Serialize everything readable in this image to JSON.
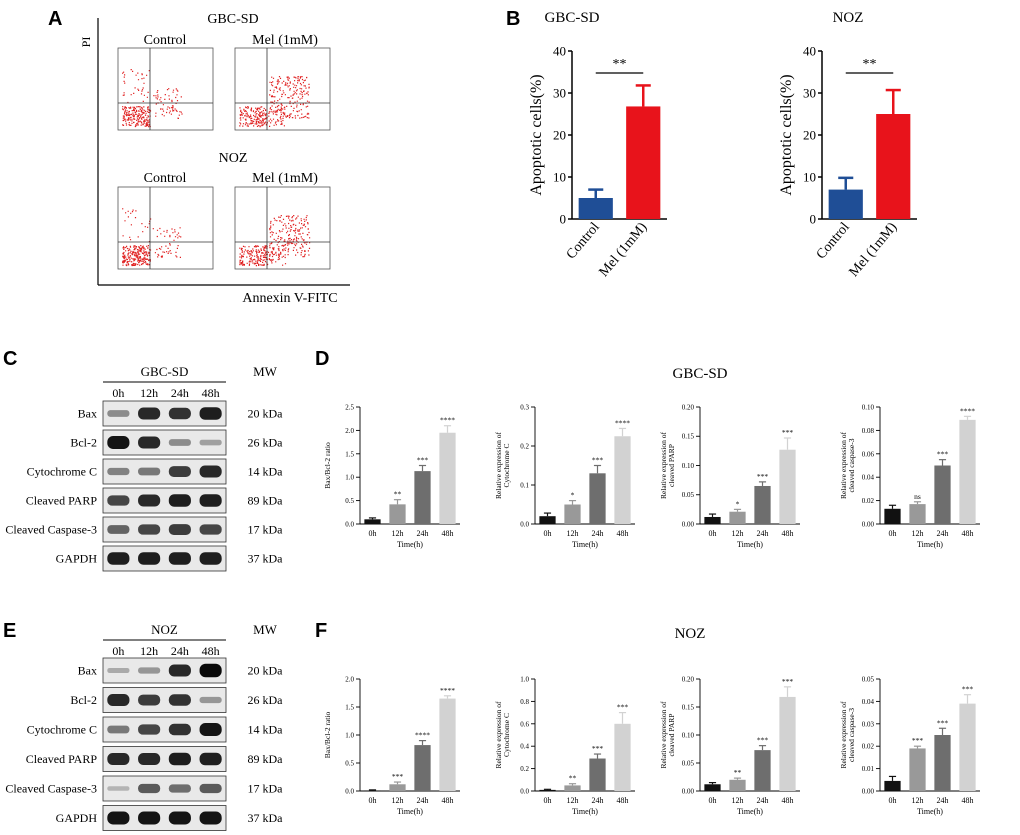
{
  "panel_labels": {
    "A": "A",
    "B": "B",
    "C": "C",
    "D": "D",
    "E": "E",
    "F": "F"
  },
  "panel_a": {
    "y_axis": "PI",
    "x_axis": "Annexin V-FITC",
    "group1": "GBC-SD",
    "group2": "NOZ",
    "cond_control": "Control",
    "cond_mel": "Mel (1mM)"
  },
  "colors": {
    "control_bar": "#1f4e96",
    "mel_bar": "#e8131b",
    "dot": "#e02020",
    "t0": "#111111",
    "t12": "#999999",
    "t24": "#6e6e6e",
    "t48": "#d2d2d2"
  },
  "western_c": {
    "cell": "GBC-SD",
    "mw_header": "MW",
    "times": [
      "0h",
      "12h",
      "24h",
      "48h"
    ],
    "rows": [
      {
        "name": "Bax",
        "mw": "20 kDa",
        "intensity": [
          0.35,
          0.85,
          0.8,
          0.9
        ]
      },
      {
        "name": "Bcl-2",
        "mw": "26 kDa",
        "intensity": [
          0.95,
          0.85,
          0.35,
          0.25
        ]
      },
      {
        "name": "Cytochrome C",
        "mw": "14 kDa",
        "intensity": [
          0.4,
          0.45,
          0.75,
          0.85
        ]
      },
      {
        "name": "Cleaved PARP",
        "mw": "89 kDa",
        "intensity": [
          0.7,
          0.85,
          0.9,
          0.9
        ]
      },
      {
        "name": "Cleaved Caspase-3",
        "mw": "17 kDa",
        "intensity": [
          0.55,
          0.7,
          0.75,
          0.7
        ]
      },
      {
        "name": "GAPDH",
        "mw": "37 kDa",
        "intensity": [
          0.9,
          0.9,
          0.9,
          0.9
        ]
      }
    ]
  },
  "western_e": {
    "cell": "NOZ",
    "mw_header": "MW",
    "times": [
      "0h",
      "12h",
      "24h",
      "48h"
    ],
    "rows": [
      {
        "name": "Bax",
        "mw": "20 kDa",
        "intensity": [
          0.2,
          0.3,
          0.85,
          1.0
        ]
      },
      {
        "name": "Bcl-2",
        "mw": "26 kDa",
        "intensity": [
          0.85,
          0.75,
          0.8,
          0.3
        ]
      },
      {
        "name": "Cytochrome C",
        "mw": "14 kDa",
        "intensity": [
          0.45,
          0.7,
          0.8,
          0.95
        ]
      },
      {
        "name": "Cleaved PARP",
        "mw": "89 kDa",
        "intensity": [
          0.85,
          0.85,
          0.9,
          0.9
        ]
      },
      {
        "name": "Cleaved Caspase-3",
        "mw": "17 kDa",
        "intensity": [
          0.15,
          0.6,
          0.5,
          0.6
        ]
      },
      {
        "name": "GAPDH",
        "mw": "37 kDa",
        "intensity": [
          0.95,
          0.95,
          0.95,
          0.95
        ]
      }
    ]
  },
  "titles": {
    "d": "GBC-SD",
    "f": "NOZ"
  },
  "chart_data": [
    {
      "id": "B-GBC-SD",
      "type": "bar",
      "title": "GBC-SD",
      "ylabel": "Apoptotic cells(%)",
      "xlabel": "",
      "categories": [
        "Control",
        "Mel (1mM)"
      ],
      "values": [
        5,
        26.8
      ],
      "errors": [
        2,
        5
      ],
      "ylim": [
        0,
        40
      ],
      "yticks": [
        0,
        10,
        20,
        30,
        40
      ],
      "sig": "**"
    },
    {
      "id": "B-NOZ",
      "type": "bar",
      "title": "NOZ",
      "ylabel": "Apoptotic cells(%)",
      "xlabel": "",
      "categories": [
        "Control",
        "Mel (1mM)"
      ],
      "values": [
        7,
        25
      ],
      "errors": [
        2.8,
        5.7
      ],
      "ylim": [
        0,
        40
      ],
      "yticks": [
        0,
        10,
        20,
        30,
        40
      ],
      "sig": "**"
    },
    {
      "id": "D1",
      "type": "bar",
      "title": "",
      "ylabel": "Bax/Bcl-2 ratio",
      "xlabel": "Time(h)",
      "categories": [
        "0h",
        "12h",
        "24h",
        "48h"
      ],
      "values": [
        0.1,
        0.42,
        1.13,
        1.95
      ],
      "errors": [
        0.03,
        0.1,
        0.12,
        0.15
      ],
      "ylim": [
        0,
        2.5
      ],
      "yticks": [
        "0.0",
        "0.5",
        "1.0",
        "1.5",
        "2.0",
        "2.5"
      ],
      "sig": [
        "",
        "**",
        "***",
        "****"
      ]
    },
    {
      "id": "D2",
      "type": "bar",
      "title": "",
      "ylabel": "Relative expression of\nCytochrome C",
      "xlabel": "Time(h)",
      "categories": [
        "0h",
        "12h",
        "24h",
        "48h"
      ],
      "values": [
        0.02,
        0.05,
        0.13,
        0.225
      ],
      "errors": [
        0.008,
        0.01,
        0.02,
        0.02
      ],
      "ylim": [
        0,
        0.3
      ],
      "yticks": [
        "0.0",
        "0.1",
        "0.2",
        "0.3"
      ],
      "sig": [
        "",
        "*",
        "***",
        "****"
      ]
    },
    {
      "id": "D3",
      "type": "bar",
      "title": "",
      "ylabel": "Relative expression of\ncleaved PARP",
      "xlabel": "Time(h)",
      "categories": [
        "0h",
        "12h",
        "24h",
        "48h"
      ],
      "values": [
        0.012,
        0.021,
        0.065,
        0.127
      ],
      "errors": [
        0.005,
        0.004,
        0.007,
        0.02
      ],
      "ylim": [
        0,
        0.2
      ],
      "yticks": [
        "0.00",
        "0.05",
        "0.10",
        "0.15",
        "0.20"
      ],
      "sig": [
        "",
        "*",
        "***",
        "***"
      ]
    },
    {
      "id": "D4",
      "type": "bar",
      "title": "",
      "ylabel": "Relative expression of\ncleaved caspase-3",
      "xlabel": "Time(h)",
      "categories": [
        "0h",
        "12h",
        "24h",
        "48h"
      ],
      "values": [
        0.013,
        0.017,
        0.05,
        0.089
      ],
      "errors": [
        0.003,
        0.002,
        0.005,
        0.003
      ],
      "ylim": [
        0,
        0.1
      ],
      "yticks": [
        "0.00",
        "0.02",
        "0.04",
        "0.06",
        "0.08",
        "0.10"
      ],
      "sig": [
        "",
        "ns",
        "***",
        "****"
      ]
    },
    {
      "id": "F1",
      "type": "bar",
      "title": "",
      "ylabel": "Bax/Bcl-2 ratio",
      "xlabel": "Time(h)",
      "categories": [
        "0h",
        "12h",
        "24h",
        "48h"
      ],
      "values": [
        0.01,
        0.12,
        0.82,
        1.65
      ],
      "errors": [
        0.01,
        0.04,
        0.08,
        0.05
      ],
      "ylim": [
        0,
        2.0
      ],
      "yticks": [
        "0.0",
        "0.5",
        "1.0",
        "1.5",
        "2.0"
      ],
      "sig": [
        "",
        "***",
        "****",
        "****"
      ]
    },
    {
      "id": "F2",
      "type": "bar",
      "title": "",
      "ylabel": "Relative expression of\nCytochrome C",
      "xlabel": "Time(h)",
      "categories": [
        "0h",
        "12h",
        "24h",
        "48h"
      ],
      "values": [
        0.01,
        0.05,
        0.29,
        0.6
      ],
      "errors": [
        0.005,
        0.015,
        0.04,
        0.1
      ],
      "ylim": [
        0,
        1.0
      ],
      "yticks": [
        "0.0",
        "0.2",
        "0.4",
        "0.6",
        "0.8",
        "1.0"
      ],
      "sig": [
        "",
        "**",
        "***",
        "***"
      ]
    },
    {
      "id": "F3",
      "type": "bar",
      "title": "",
      "ylabel": "Relative expression of\ncleaved PARP",
      "xlabel": "Time(h)",
      "categories": [
        "0h",
        "12h",
        "24h",
        "48h"
      ],
      "values": [
        0.012,
        0.02,
        0.073,
        0.168
      ],
      "errors": [
        0.003,
        0.003,
        0.008,
        0.018
      ],
      "ylim": [
        0,
        0.2
      ],
      "yticks": [
        "0.00",
        "0.05",
        "0.10",
        "0.15",
        "0.20"
      ],
      "sig": [
        "",
        "**",
        "***",
        "***"
      ]
    },
    {
      "id": "F4",
      "type": "bar",
      "title": "",
      "ylabel": "Relative expression of\ncleaved caspase-3",
      "xlabel": "Time(h)",
      "categories": [
        "0h",
        "12h",
        "24h",
        "48h"
      ],
      "values": [
        0.0045,
        0.019,
        0.025,
        0.039
      ],
      "errors": [
        0.002,
        0.001,
        0.003,
        0.004
      ],
      "ylim": [
        0,
        0.05
      ],
      "yticks": [
        "0.00",
        "0.01",
        "0.02",
        "0.03",
        "0.04",
        "0.05"
      ],
      "sig": [
        "",
        "***",
        "***",
        "***"
      ]
    }
  ]
}
